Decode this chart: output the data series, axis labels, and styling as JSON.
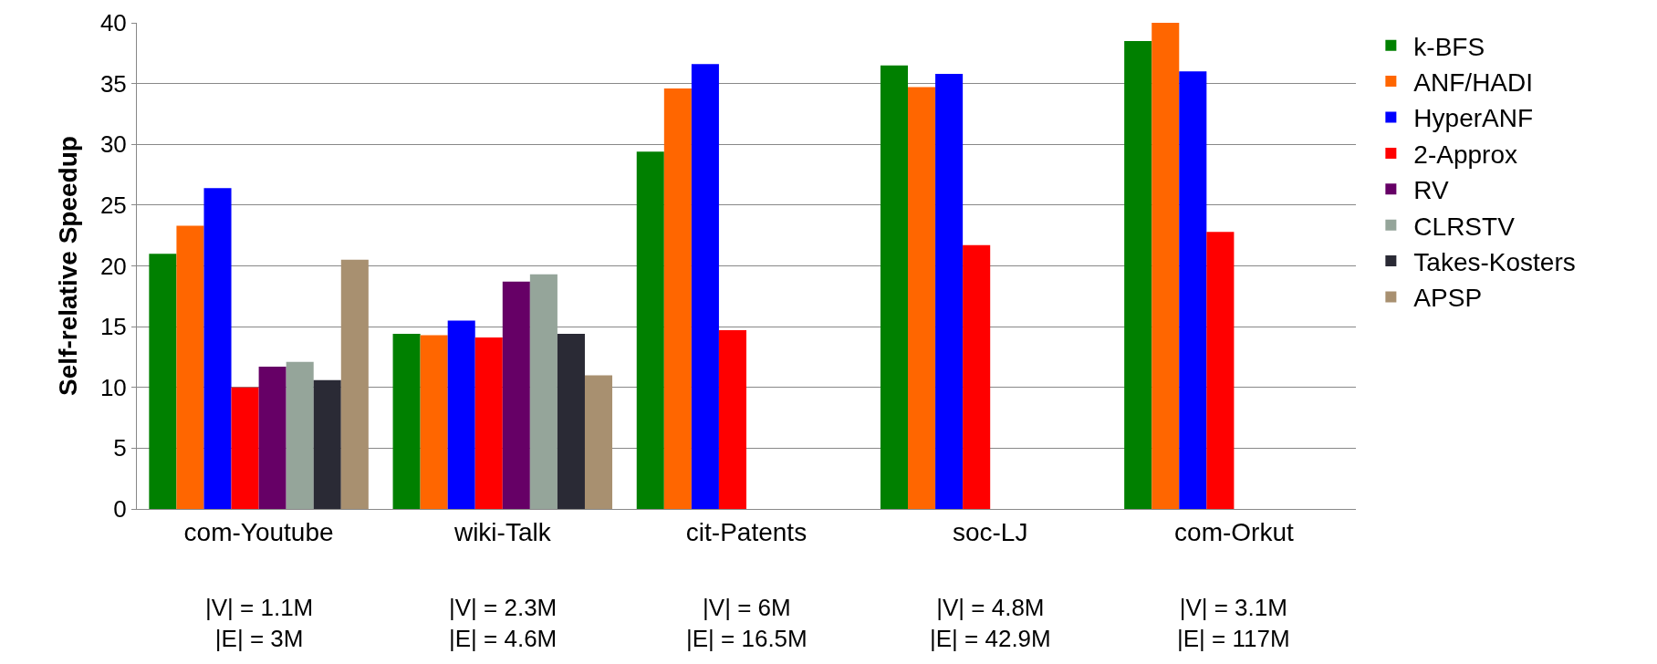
{
  "chart_data": {
    "type": "bar",
    "ylabel": "Self-relative Speedup",
    "categories": [
      "com-Youtube",
      "wiki-Talk",
      "cit-Patents",
      "soc-LJ",
      "com-Orkut"
    ],
    "ylim": [
      0,
      40
    ],
    "yticks": [
      0,
      5,
      10,
      15,
      20,
      25,
      30,
      35,
      40
    ],
    "grid": "y",
    "legend": "right",
    "series": [
      {
        "name": "k-BFS",
        "color": "#008000",
        "values": [
          21,
          14.4,
          29.4,
          36.5,
          38.5
        ]
      },
      {
        "name": "ANF/HADI",
        "color": "#ff6600",
        "values": [
          23.3,
          14.3,
          34.6,
          34.7,
          40
        ]
      },
      {
        "name": "HyperANF",
        "color": "#0000ff",
        "values": [
          26.4,
          15.5,
          36.6,
          35.8,
          36
        ]
      },
      {
        "name": "2-Approx",
        "color": "#ff0000",
        "values": [
          10,
          14.1,
          14.7,
          21.7,
          22.8
        ]
      },
      {
        "name": "RV",
        "color": "#660066",
        "values": [
          11.7,
          18.7,
          null,
          null,
          null
        ]
      },
      {
        "name": "CLRSTV",
        "color": "#95a59a",
        "values": [
          12.1,
          19.3,
          null,
          null,
          null
        ]
      },
      {
        "name": "Takes-Kosters",
        "color": "#2a2a35",
        "values": [
          10.6,
          14.4,
          null,
          null,
          null
        ]
      },
      {
        "name": "APSP",
        "color": "#a89070",
        "values": [
          20.5,
          11,
          null,
          null,
          null
        ]
      }
    ],
    "annotations": [
      "|V| = 1.1M\n|E| = 3M",
      "|V| = 2.3M\n|E| = 4.6M",
      "|V| = 6M\n|E| = 16.5M",
      "|V| = 4.8M\n|E| = 42.9M",
      "|V| = 3.1M\n|E| = 117M"
    ]
  }
}
